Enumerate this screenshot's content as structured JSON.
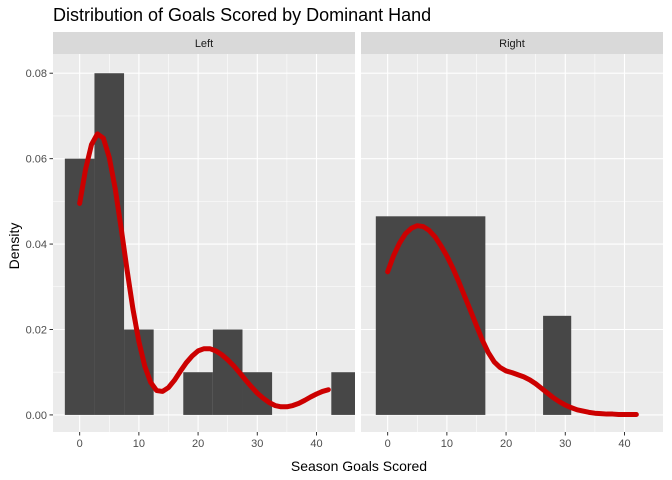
{
  "chart_data": {
    "type": "bar",
    "title": "Distribution of Goals Scored by Dominant Hand",
    "xlabel": "Season Goals Scored",
    "ylabel": "Density",
    "xlim": [
      -4.5,
      46.5
    ],
    "ylim": [
      -0.004,
      0.0845
    ],
    "x_ticks": [
      0,
      10,
      20,
      30,
      40
    ],
    "y_ticks": [
      0.0,
      0.02,
      0.04,
      0.06,
      0.08
    ],
    "y_tick_labels": [
      "0.00",
      "0.02",
      "0.04",
      "0.06",
      "0.08"
    ],
    "grid": true,
    "colors": {
      "bar": "#474747",
      "density_line": "#cc0000",
      "panel_bg": "#ebebeb",
      "strip_bg": "#d9d9d9",
      "grid": "#ffffff"
    },
    "facets": [
      {
        "name": "Left",
        "histogram": [
          {
            "x0": -2.5,
            "x1": 2.5,
            "density": 0.06
          },
          {
            "x0": 2.5,
            "x1": 7.5,
            "density": 0.08
          },
          {
            "x0": 7.5,
            "x1": 12.5,
            "density": 0.02
          },
          {
            "x0": 17.5,
            "x1": 22.5,
            "density": 0.01
          },
          {
            "x0": 22.5,
            "x1": 27.5,
            "density": 0.02
          },
          {
            "x0": 27.5,
            "x1": 32.5,
            "density": 0.01
          },
          {
            "x0": 42.5,
            "x1": 47.5,
            "density": 0.01
          }
        ],
        "density_curve": {
          "x": [
            0,
            1,
            2,
            3,
            4,
            5,
            6,
            7,
            8,
            9,
            10,
            11,
            12,
            13,
            14,
            15,
            16,
            17,
            18,
            19,
            20,
            21,
            22,
            23,
            24,
            25,
            26,
            27,
            28,
            29,
            30,
            31,
            32,
            33,
            34,
            35,
            36,
            37,
            38,
            39,
            40,
            41,
            42
          ],
          "y": [
            0.0495,
            0.0575,
            0.0633,
            0.0658,
            0.0648,
            0.0603,
            0.053,
            0.0438,
            0.034,
            0.0248,
            0.0172,
            0.0114,
            0.0076,
            0.0057,
            0.0055,
            0.0064,
            0.0081,
            0.0102,
            0.0122,
            0.0138,
            0.015,
            0.0155,
            0.0155,
            0.015,
            0.0141,
            0.0129,
            0.0115,
            0.0099,
            0.0082,
            0.0066,
            0.0051,
            0.0039,
            0.0029,
            0.0022,
            0.0019,
            0.0019,
            0.0022,
            0.0027,
            0.0034,
            0.0042,
            0.0049,
            0.0055,
            0.0059
          ]
        }
      },
      {
        "name": "Right",
        "histogram": [
          {
            "x0": -2.0,
            "x1": 16.5,
            "density": 0.0465
          },
          {
            "x0": 26.25,
            "x1": 31.0,
            "density": 0.0232
          }
        ],
        "density_curve": {
          "x": [
            0,
            1,
            2,
            3,
            4,
            5,
            6,
            7,
            8,
            9,
            10,
            11,
            12,
            13,
            14,
            15,
            16,
            17,
            18,
            19,
            20,
            21,
            22,
            23,
            24,
            25,
            26,
            27,
            28,
            29,
            30,
            31,
            32,
            33,
            34,
            35,
            36,
            37,
            38,
            39,
            40,
            41,
            42
          ],
          "y": [
            0.0335,
            0.0373,
            0.0402,
            0.0424,
            0.0437,
            0.0443,
            0.0441,
            0.0432,
            0.0417,
            0.0396,
            0.0372,
            0.0344,
            0.0312,
            0.0278,
            0.0244,
            0.0209,
            0.0175,
            0.0146,
            0.0124,
            0.0111,
            0.0103,
            0.0099,
            0.0094,
            0.0089,
            0.0082,
            0.0073,
            0.0062,
            0.0051,
            0.004,
            0.0031,
            0.0023,
            0.0017,
            0.0012,
            0.0009,
            0.0006,
            0.0004,
            0.0003,
            0.0002,
            0.0002,
            0.0001,
            0.0001,
            0.0001,
            0.0001
          ]
        }
      }
    ]
  }
}
